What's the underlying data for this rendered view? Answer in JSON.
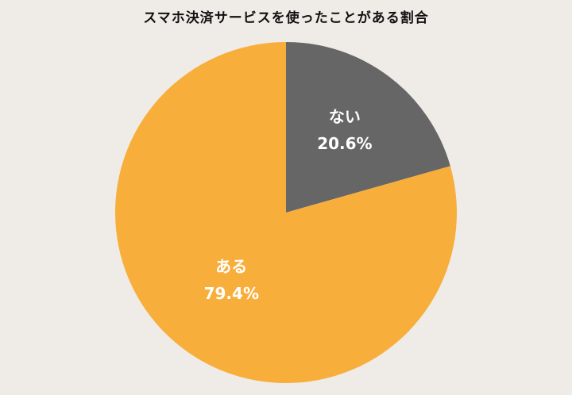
{
  "chart_data": {
    "type": "pie",
    "title": "スマホ決済サービスを使ったことがある割合",
    "slices": [
      {
        "label": "ない",
        "value": 20.6,
        "value_label": "20.6%",
        "color": "#666666"
      },
      {
        "label": "ある",
        "value": 79.4,
        "value_label": "79.4%",
        "color": "#f8ae3b"
      }
    ],
    "start_angle_deg": 0,
    "direction": "clockwise",
    "legend": "none"
  },
  "colors": {
    "background": "#efebe7",
    "title": "#111111",
    "label": "#ffffff"
  }
}
